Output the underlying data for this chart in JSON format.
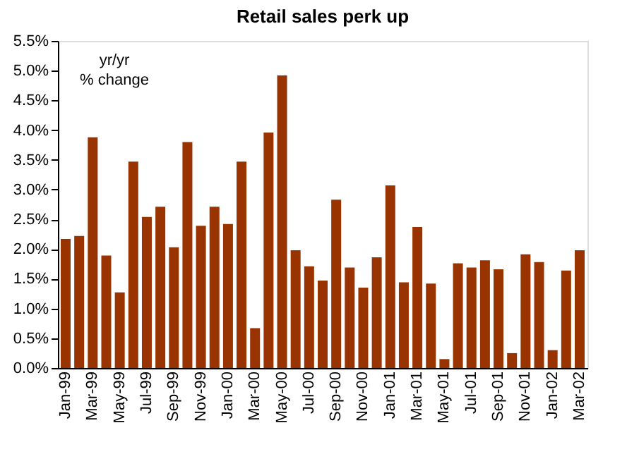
{
  "chart_data": {
    "type": "bar",
    "title": "Retail sales perk up",
    "categories": [
      "Jan-99",
      null,
      "Mar-99",
      null,
      "May-99",
      null,
      "Jul-99",
      null,
      "Sep-99",
      null,
      "Nov-99",
      null,
      "Jan-00",
      null,
      "Mar-00",
      null,
      "May-00",
      null,
      "Jul-00",
      null,
      "Sep-00",
      null,
      "Nov-00",
      null,
      "Jan-01",
      null,
      "Mar-01",
      null,
      "May-01",
      null,
      "Jul-01",
      null,
      "Sep-01",
      null,
      "Nov-01",
      null,
      "Jan-02",
      null,
      "Mar-02"
    ],
    "values": [
      2.17,
      2.22,
      3.88,
      1.89,
      1.27,
      3.47,
      2.54,
      2.71,
      2.03,
      3.8,
      2.39,
      2.71,
      2.42,
      3.47,
      0.67,
      3.96,
      4.92,
      1.98,
      1.71,
      1.47,
      2.83,
      1.69,
      1.35,
      1.86,
      3.07,
      1.44,
      2.37,
      1.42,
      0.15,
      1.76,
      1.69,
      1.81,
      1.66,
      0.25,
      1.91,
      1.78,
      0.3,
      1.64,
      1.98
    ],
    "color": "#993300",
    "ylim": [
      0,
      5.5
    ],
    "yticks": [
      {
        "value": 0,
        "label": "0.0%"
      },
      {
        "value": 0.5,
        "label": "0.5%"
      },
      {
        "value": 1,
        "label": "1.0%"
      },
      {
        "value": 1.5,
        "label": "1.5%"
      },
      {
        "value": 2,
        "label": "2.0%"
      },
      {
        "value": 2.5,
        "label": "2.5%"
      },
      {
        "value": 3,
        "label": "3.0%"
      },
      {
        "value": 3.5,
        "label": "3.5%"
      },
      {
        "value": 4,
        "label": "4.0%"
      },
      {
        "value": 4.5,
        "label": "4.5%"
      },
      {
        "value": 5,
        "label": "5.0%"
      },
      {
        "value": 5.5,
        "label": "5.5%"
      }
    ],
    "annotations": [
      "yr/yr\n% change"
    ],
    "grid": false
  }
}
